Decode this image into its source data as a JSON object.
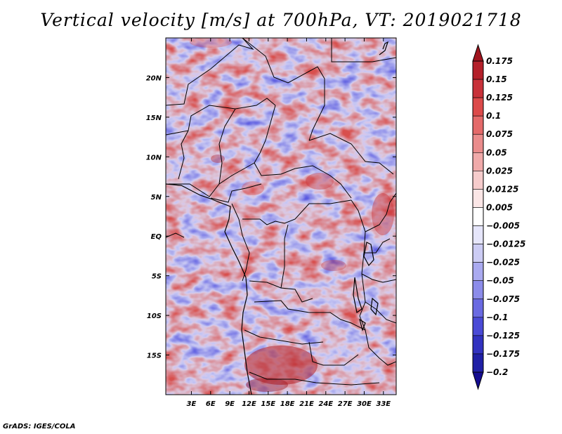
{
  "title": "Vertical velocity [m/s] at 700hPa, VT: 2019021718",
  "credit": "GrADS: IGES/COLA",
  "map": {
    "lon_range": [
      -1,
      35
    ],
    "lat_range": [
      -20,
      25
    ],
    "lon_ticks": [
      {
        "value": 3,
        "label": "3E"
      },
      {
        "value": 6,
        "label": "6E"
      },
      {
        "value": 9,
        "label": "9E"
      },
      {
        "value": 12,
        "label": "12E"
      },
      {
        "value": 15,
        "label": "15E"
      },
      {
        "value": 18,
        "label": "18E"
      },
      {
        "value": 21,
        "label": "21E"
      },
      {
        "value": 24,
        "label": "24E"
      },
      {
        "value": 27,
        "label": "27E"
      },
      {
        "value": 30,
        "label": "30E"
      },
      {
        "value": 33,
        "label": "33E"
      }
    ],
    "lat_ticks": [
      {
        "value": 20,
        "label": "20N"
      },
      {
        "value": 15,
        "label": "15N"
      },
      {
        "value": 10,
        "label": "10N"
      },
      {
        "value": 5,
        "label": "5N"
      },
      {
        "value": 0,
        "label": "EQ"
      },
      {
        "value": -5,
        "label": "5S"
      },
      {
        "value": -10,
        "label": "10S"
      },
      {
        "value": -15,
        "label": "15S"
      }
    ]
  },
  "colorbar": {
    "levels": [
      "0.175",
      "0.15",
      "0.125",
      "0.1",
      "0.075",
      "0.05",
      "0.025",
      "0.0125",
      "0.005",
      "-0.005",
      "-0.0125",
      "-0.025",
      "-0.05",
      "-0.075",
      "-0.1",
      "-0.125",
      "-0.175",
      "-0.2"
    ],
    "colors": [
      "#a0141e",
      "#b4202a",
      "#c8323a",
      "#dc4a4a",
      "#e46a6a",
      "#ea8c8c",
      "#f0aaaa",
      "#f6cccc",
      "#fbe6e6",
      "#ffffff",
      "#e6e6fb",
      "#ccccf4",
      "#aaaaf0",
      "#8c8cea",
      "#6a6ae2",
      "#4a4ad6",
      "#3232c0",
      "#2020a6",
      "#140c90"
    ]
  }
}
